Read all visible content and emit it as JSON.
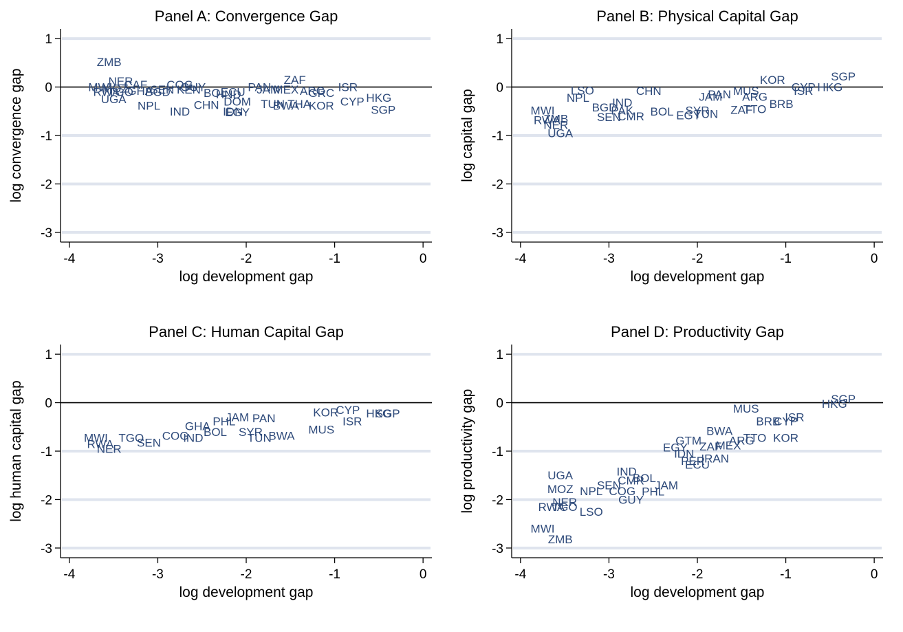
{
  "chart_data": [
    {
      "type": "scatter",
      "title": "Panel A: Convergence Gap",
      "xlabel": "log development gap",
      "ylabel": "log convergence gap",
      "xlim": [
        -4.1,
        0.1
      ],
      "ylim": [
        -3.2,
        1.2
      ],
      "xticks": [
        "-4",
        "-3",
        "-2",
        "-1",
        "0"
      ],
      "yticks": [
        "1",
        "0",
        "-1",
        "-2",
        "-3"
      ],
      "grid": true,
      "points": [
        {
          "label": "ZMB",
          "x": -3.55,
          "y": 0.52
        },
        {
          "label": "NER",
          "x": -3.42,
          "y": 0.12
        },
        {
          "label": "MWI",
          "x": -3.65,
          "y": 0.0
        },
        {
          "label": "RWA",
          "x": -3.58,
          "y": -0.1
        },
        {
          "label": "CAF",
          "x": -3.25,
          "y": 0.05
        },
        {
          "label": "MOZ",
          "x": -3.48,
          "y": -0.03
        },
        {
          "label": "TGO",
          "x": -3.42,
          "y": -0.1
        },
        {
          "label": "UGA",
          "x": -3.5,
          "y": -0.25
        },
        {
          "label": "GHA",
          "x": -3.2,
          "y": -0.08
        },
        {
          "label": "BGD",
          "x": -3.0,
          "y": -0.1
        },
        {
          "label": "SEN",
          "x": -2.95,
          "y": -0.05
        },
        {
          "label": "NPL",
          "x": -3.1,
          "y": -0.38
        },
        {
          "label": "COG",
          "x": -2.75,
          "y": 0.05
        },
        {
          "label": "KEN",
          "x": -2.65,
          "y": -0.05
        },
        {
          "label": "GUY",
          "x": -2.6,
          "y": 0.0
        },
        {
          "label": "IND",
          "x": -2.75,
          "y": -0.5
        },
        {
          "label": "CHN",
          "x": -2.45,
          "y": -0.37
        },
        {
          "label": "BOL",
          "x": -2.35,
          "y": -0.12
        },
        {
          "label": "HND",
          "x": -2.2,
          "y": -0.15
        },
        {
          "label": "ECU",
          "x": -2.15,
          "y": -0.1
        },
        {
          "label": "DOM",
          "x": -2.1,
          "y": -0.3
        },
        {
          "label": "EGY",
          "x": -2.1,
          "y": -0.52
        },
        {
          "label": "IDN",
          "x": -2.15,
          "y": -0.5
        },
        {
          "label": "PAN",
          "x": -1.85,
          "y": 0.0
        },
        {
          "label": "JAM",
          "x": -1.75,
          "y": -0.05
        },
        {
          "label": "ZAF",
          "x": -1.45,
          "y": 0.15
        },
        {
          "label": "MEX",
          "x": -1.55,
          "y": -0.05
        },
        {
          "label": "TUN",
          "x": -1.7,
          "y": -0.35
        },
        {
          "label": "BWA",
          "x": -1.55,
          "y": -0.38
        },
        {
          "label": "THA",
          "x": -1.4,
          "y": -0.35
        },
        {
          "label": "ARG",
          "x": -1.25,
          "y": -0.08
        },
        {
          "label": "GRC",
          "x": -1.15,
          "y": -0.12
        },
        {
          "label": "KOR",
          "x": -1.15,
          "y": -0.38
        },
        {
          "label": "ISR",
          "x": -0.85,
          "y": 0.0
        },
        {
          "label": "CYP",
          "x": -0.8,
          "y": -0.3
        },
        {
          "label": "HKG",
          "x": -0.5,
          "y": -0.22
        },
        {
          "label": "SGP",
          "x": -0.45,
          "y": -0.47
        }
      ]
    },
    {
      "type": "scatter",
      "title": "Panel B: Physical Capital Gap",
      "xlabel": "log development gap",
      "ylabel": "log capital gap",
      "xlim": [
        -4.1,
        0.1
      ],
      "ylim": [
        -3.2,
        1.2
      ],
      "xticks": [
        "-4",
        "-3",
        "-2",
        "-1",
        "0"
      ],
      "yticks": [
        "1",
        "0",
        "-1",
        "-2",
        "-3"
      ],
      "grid": true,
      "points": [
        {
          "label": "SGP",
          "x": -0.35,
          "y": 0.22
        },
        {
          "label": "KOR",
          "x": -1.15,
          "y": 0.15
        },
        {
          "label": "CYP",
          "x": -0.8,
          "y": 0.0
        },
        {
          "label": "HKG",
          "x": -0.5,
          "y": 0.0
        },
        {
          "label": "ISR",
          "x": -0.8,
          "y": -0.08
        },
        {
          "label": "BRB",
          "x": -1.05,
          "y": -0.35
        },
        {
          "label": "TTO",
          "x": -1.35,
          "y": -0.45
        },
        {
          "label": "ZAF",
          "x": -1.5,
          "y": -0.47
        },
        {
          "label": "MUS",
          "x": -1.45,
          "y": -0.08
        },
        {
          "label": "ARG",
          "x": -1.35,
          "y": -0.2
        },
        {
          "label": "PAN",
          "x": -1.75,
          "y": -0.15
        },
        {
          "label": "JAM",
          "x": -1.85,
          "y": -0.2
        },
        {
          "label": "SYR",
          "x": -2.0,
          "y": -0.48
        },
        {
          "label": "TUN",
          "x": -1.9,
          "y": -0.55
        },
        {
          "label": "EGY",
          "x": -2.1,
          "y": -0.58
        },
        {
          "label": "CHN",
          "x": -2.55,
          "y": -0.08
        },
        {
          "label": "LSO",
          "x": -3.3,
          "y": -0.07
        },
        {
          "label": "NPL",
          "x": -3.35,
          "y": -0.22
        },
        {
          "label": "IND",
          "x": -2.85,
          "y": -0.32
        },
        {
          "label": "BGD",
          "x": -3.05,
          "y": -0.42
        },
        {
          "label": "PAK",
          "x": -2.85,
          "y": -0.48
        },
        {
          "label": "SEN",
          "x": -3.0,
          "y": -0.62
        },
        {
          "label": "CMR",
          "x": -2.75,
          "y": -0.6
        },
        {
          "label": "BOL",
          "x": -2.4,
          "y": -0.5
        },
        {
          "label": "MWI",
          "x": -3.75,
          "y": -0.48
        },
        {
          "label": "RWA",
          "x": -3.7,
          "y": -0.68
        },
        {
          "label": "ZMB",
          "x": -3.6,
          "y": -0.65
        },
        {
          "label": "NER",
          "x": -3.6,
          "y": -0.78
        },
        {
          "label": "UGA",
          "x": -3.55,
          "y": -0.95
        }
      ]
    },
    {
      "type": "scatter",
      "title": "Panel C: Human Capital Gap",
      "xlabel": "log development gap",
      "ylabel": "log human capital gap",
      "xlim": [
        -4.1,
        0.1
      ],
      "ylim": [
        -3.2,
        1.2
      ],
      "xticks": [
        "-4",
        "-3",
        "-2",
        "-1",
        "0"
      ],
      "yticks": [
        "1",
        "0",
        "-1",
        "-2",
        "-3"
      ],
      "grid": true,
      "points": [
        {
          "label": "CYP",
          "x": -0.85,
          "y": -0.15
        },
        {
          "label": "HKG",
          "x": -0.5,
          "y": -0.22
        },
        {
          "label": "SGP",
          "x": -0.4,
          "y": -0.22
        },
        {
          "label": "ISR",
          "x": -0.8,
          "y": -0.38
        },
        {
          "label": "KOR",
          "x": -1.1,
          "y": -0.2
        },
        {
          "label": "MUS",
          "x": -1.15,
          "y": -0.55
        },
        {
          "label": "PAN",
          "x": -1.8,
          "y": -0.32
        },
        {
          "label": "JAM",
          "x": -2.1,
          "y": -0.3
        },
        {
          "label": "BWA",
          "x": -1.6,
          "y": -0.68
        },
        {
          "label": "SYR",
          "x": -1.95,
          "y": -0.6
        },
        {
          "label": "TUN",
          "x": -1.85,
          "y": -0.72
        },
        {
          "label": "GHA",
          "x": -2.55,
          "y": -0.48
        },
        {
          "label": "PHL",
          "x": -2.25,
          "y": -0.38
        },
        {
          "label": "BOL",
          "x": -2.35,
          "y": -0.6
        },
        {
          "label": "IND",
          "x": -2.6,
          "y": -0.72
        },
        {
          "label": "COG",
          "x": -2.8,
          "y": -0.68
        },
        {
          "label": "MWI",
          "x": -3.7,
          "y": -0.72
        },
        {
          "label": "RWA",
          "x": -3.65,
          "y": -0.85
        },
        {
          "label": "TGO",
          "x": -3.3,
          "y": -0.72
        },
        {
          "label": "NER",
          "x": -3.55,
          "y": -0.95
        },
        {
          "label": "SEN",
          "x": -3.1,
          "y": -0.82
        }
      ]
    },
    {
      "type": "scatter",
      "title": "Panel D: Productivity Gap",
      "xlabel": "log development gap",
      "ylabel": "log productivity gap",
      "xlim": [
        -4.1,
        0.1
      ],
      "ylim": [
        -3.2,
        1.2
      ],
      "xticks": [
        "-4",
        "-3",
        "-2",
        "-1",
        "0"
      ],
      "yticks": [
        "1",
        "0",
        "-1",
        "-2",
        "-3"
      ],
      "grid": true,
      "points": [
        {
          "label": "SGP",
          "x": -0.35,
          "y": 0.08
        },
        {
          "label": "HKG",
          "x": -0.45,
          "y": -0.02
        },
        {
          "label": "MUS",
          "x": -1.45,
          "y": -0.12
        },
        {
          "label": "ISR",
          "x": -0.9,
          "y": -0.3
        },
        {
          "label": "BRB",
          "x": -1.2,
          "y": -0.38
        },
        {
          "label": "CYP",
          "x": -1.0,
          "y": -0.38
        },
        {
          "label": "BWA",
          "x": -1.75,
          "y": -0.58
        },
        {
          "label": "TTO",
          "x": -1.35,
          "y": -0.72
        },
        {
          "label": "KOR",
          "x": -1.0,
          "y": -0.72
        },
        {
          "label": "GTM",
          "x": -2.1,
          "y": -0.78
        },
        {
          "label": "ARG",
          "x": -1.5,
          "y": -0.78
        },
        {
          "label": "MEX",
          "x": -1.65,
          "y": -0.88
        },
        {
          "label": "EGY",
          "x": -2.25,
          "y": -0.92
        },
        {
          "label": "ZAF",
          "x": -1.85,
          "y": -0.9
        },
        {
          "label": "IDN",
          "x": -2.15,
          "y": -1.05
        },
        {
          "label": "PER",
          "x": -2.05,
          "y": -1.2
        },
        {
          "label": "IRAN",
          "x": -1.8,
          "y": -1.15
        },
        {
          "label": "ECU",
          "x": -2.0,
          "y": -1.28
        },
        {
          "label": "IND",
          "x": -2.8,
          "y": -1.42
        },
        {
          "label": "BOL",
          "x": -2.6,
          "y": -1.55
        },
        {
          "label": "CMR",
          "x": -2.75,
          "y": -1.6
        },
        {
          "label": "JAM",
          "x": -2.35,
          "y": -1.7
        },
        {
          "label": "PHL",
          "x": -2.5,
          "y": -1.83
        },
        {
          "label": "SEN",
          "x": -3.0,
          "y": -1.7
        },
        {
          "label": "UGA",
          "x": -3.55,
          "y": -1.5
        },
        {
          "label": "MOZ",
          "x": -3.55,
          "y": -1.78
        },
        {
          "label": "NPL",
          "x": -3.2,
          "y": -1.82
        },
        {
          "label": "COG",
          "x": -2.85,
          "y": -1.82
        },
        {
          "label": "GUY",
          "x": -2.75,
          "y": -2.0
        },
        {
          "label": "NER",
          "x": -3.5,
          "y": -2.05
        },
        {
          "label": "RWA",
          "x": -3.65,
          "y": -2.15
        },
        {
          "label": "TGO",
          "x": -3.5,
          "y": -2.15
        },
        {
          "label": "LSO",
          "x": -3.2,
          "y": -2.25
        },
        {
          "label": "MWI",
          "x": -3.75,
          "y": -2.6
        },
        {
          "label": "ZMB",
          "x": -3.55,
          "y": -2.82
        }
      ]
    }
  ]
}
